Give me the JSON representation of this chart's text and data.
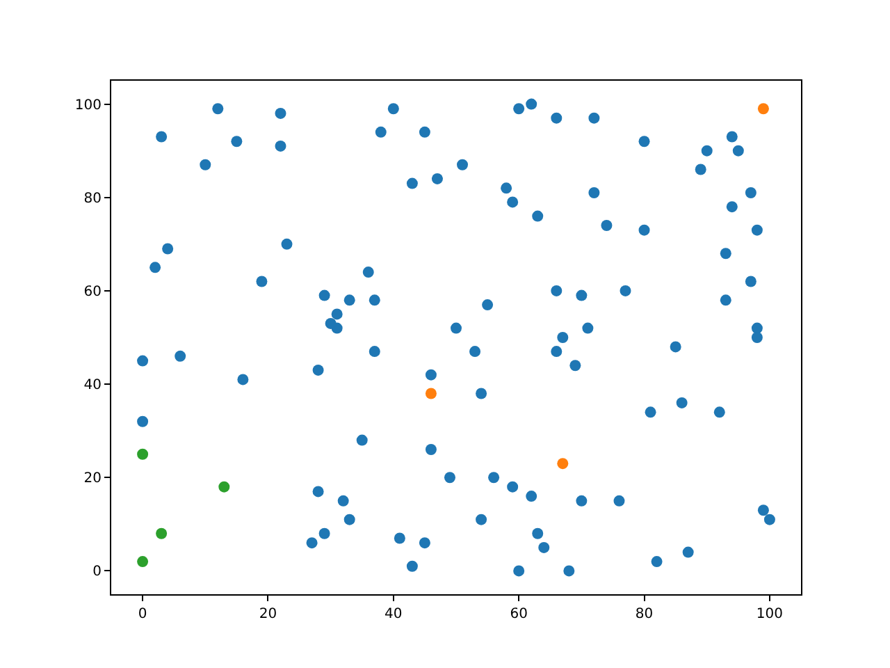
{
  "chart_data": {
    "type": "scatter",
    "marker": "circle",
    "xlim": [
      -5,
      105
    ],
    "ylim": [
      -5,
      105
    ],
    "xticks": [
      0,
      20,
      40,
      60,
      80,
      100
    ],
    "yticks": [
      0,
      20,
      40,
      60,
      80,
      100
    ],
    "series": [
      {
        "color": "#1f77b4",
        "x": [
          3,
          10,
          12,
          15,
          22,
          22,
          23,
          19,
          2,
          4,
          38,
          40,
          45,
          43,
          47,
          51,
          58,
          59,
          60,
          62,
          63,
          66,
          72,
          72,
          74,
          80,
          80,
          89,
          90,
          94,
          95,
          94,
          97,
          98,
          93,
          97,
          93,
          98,
          98,
          29,
          31,
          30,
          31,
          33,
          36,
          37,
          37,
          28,
          46,
          50,
          53,
          55,
          54,
          66,
          70,
          67,
          66,
          69,
          71,
          77,
          85,
          81,
          86,
          92,
          16,
          6,
          0,
          0,
          35,
          46,
          49,
          28,
          32,
          33,
          29,
          27,
          41,
          45,
          43,
          56,
          59,
          62,
          54,
          63,
          64,
          60,
          68,
          70,
          76,
          82,
          87,
          99,
          100
        ],
        "values": [
          93,
          87,
          99,
          92,
          98,
          91,
          70,
          62,
          65,
          69,
          94,
          99,
          94,
          83,
          84,
          87,
          82,
          79,
          99,
          100,
          76,
          97,
          97,
          81,
          74,
          92,
          73,
          86,
          90,
          93,
          90,
          78,
          81,
          73,
          68,
          62,
          58,
          52,
          50,
          59,
          52,
          53,
          55,
          58,
          64,
          58,
          47,
          43,
          42,
          52,
          47,
          57,
          38,
          60,
          59,
          50,
          47,
          44,
          52,
          60,
          48,
          34,
          36,
          34,
          41,
          46,
          45,
          32,
          28,
          26,
          20,
          17,
          15,
          11,
          8,
          6,
          7,
          6,
          1,
          20,
          18,
          16,
          11,
          8,
          5,
          0,
          0,
          15,
          15,
          2,
          4,
          13,
          11
        ]
      },
      {
        "color": "#ff7f0e",
        "x": [
          46,
          67,
          99
        ],
        "values": [
          38,
          23,
          99
        ]
      },
      {
        "color": "#2ca02c",
        "x": [
          0,
          0,
          3,
          13
        ],
        "values": [
          25,
          2,
          8,
          18
        ]
      }
    ]
  }
}
